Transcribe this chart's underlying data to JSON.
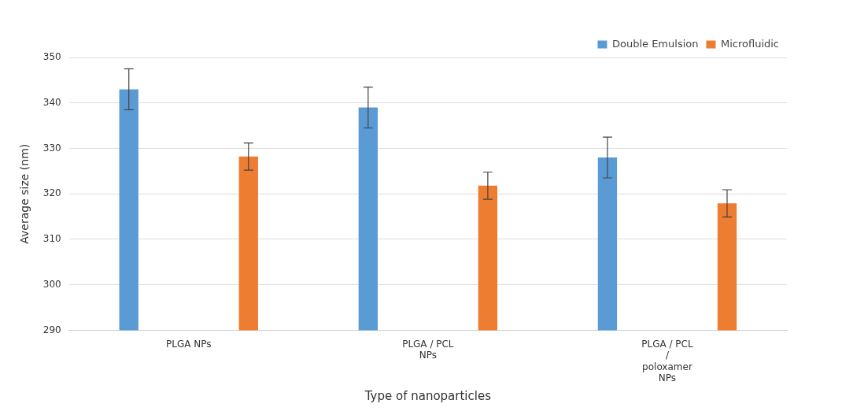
{
  "chart_data": {
    "type": "bar",
    "xlabel": "Type of nanoparticles",
    "ylabel": "Average size (nm)",
    "categories": [
      "PLGA NPs",
      "PLGA / PCL\nNPs",
      "PLGA / PCL\n/\npoloxamer\nNPs"
    ],
    "series": [
      {
        "name": "Double Emulsion",
        "color": "#5b9bd5",
        "values": [
          343,
          339,
          328
        ],
        "errors": [
          4.5,
          4.5,
          4.5
        ]
      },
      {
        "name": "Microfluidic",
        "color": "#ed7d31",
        "values": [
          328.2,
          321.8,
          317.9
        ],
        "errors": [
          3,
          3,
          3
        ]
      }
    ],
    "ylim": [
      290,
      350
    ],
    "yticks": [
      290,
      300,
      310,
      320,
      330,
      340,
      350
    ],
    "grid": "y",
    "legend": "top right"
  }
}
